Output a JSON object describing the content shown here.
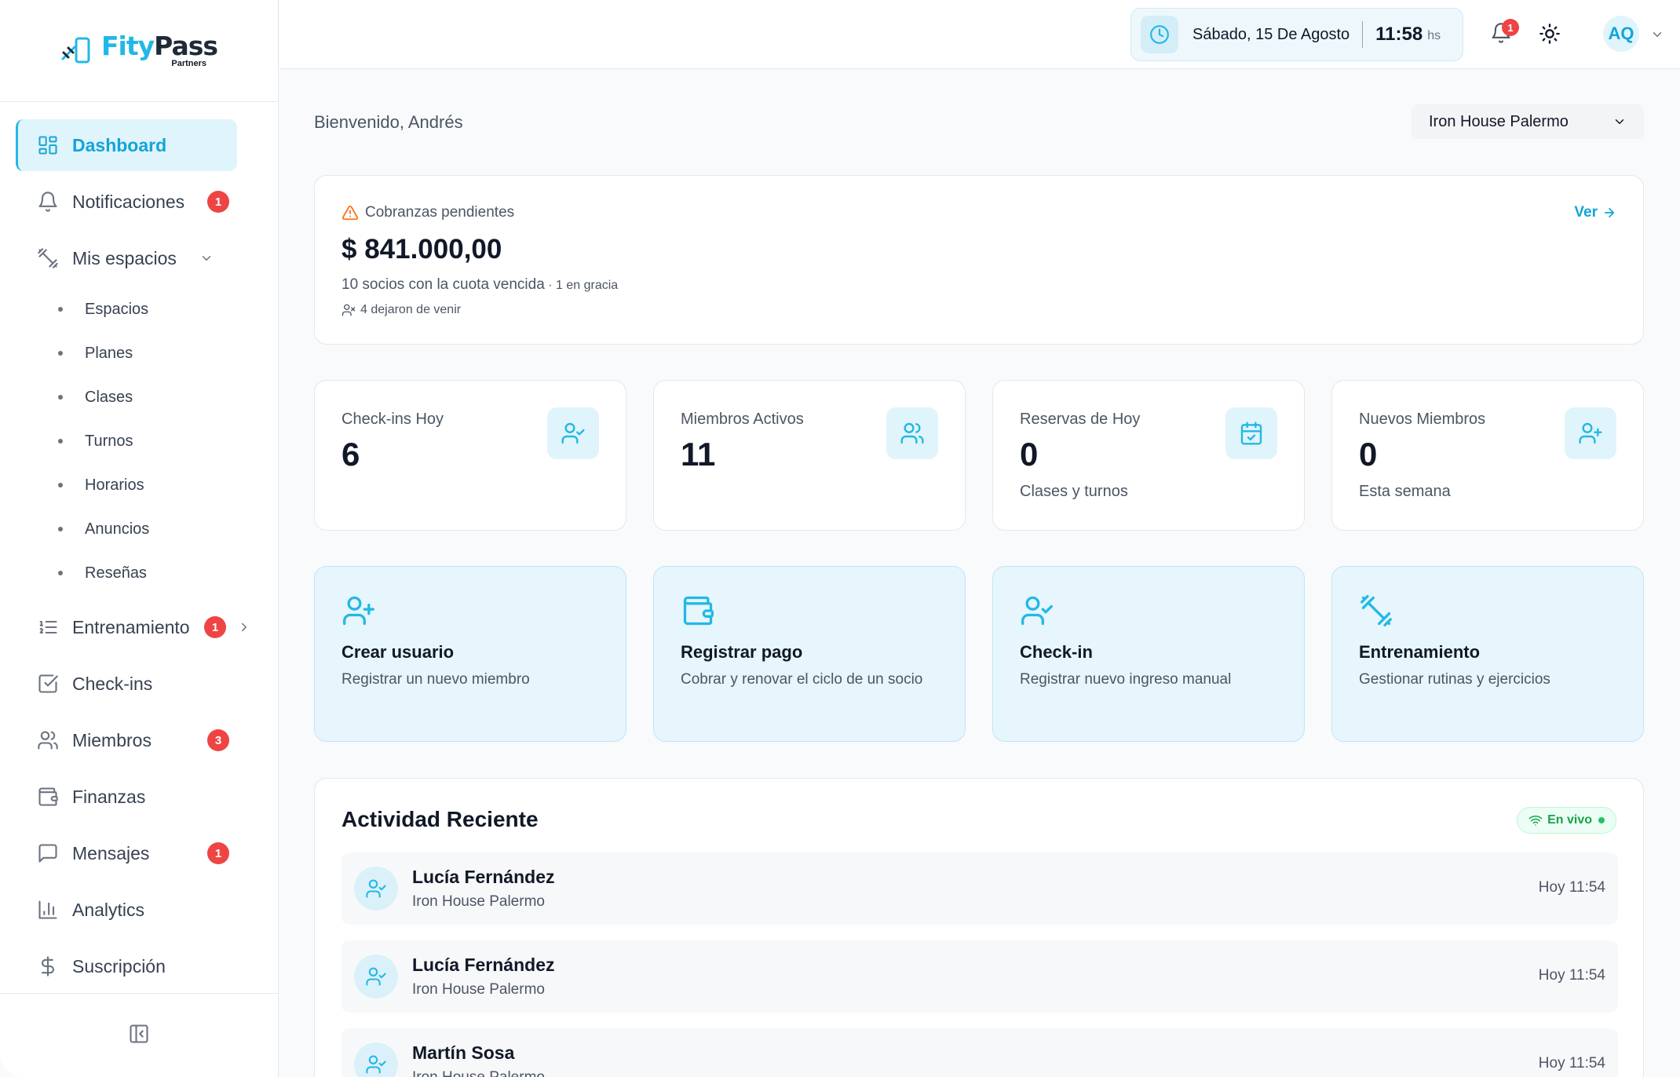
{
  "brand": {
    "name_part1": "Fity",
    "name_part2": "Pass",
    "subtitle": "Partners"
  },
  "sidebar": {
    "items": [
      {
        "label": "Dashboard",
        "icon": "dashboard-icon",
        "active": true
      },
      {
        "label": "Notificaciones",
        "icon": "bell-icon",
        "badge": "1"
      },
      {
        "label": "Mis espacios",
        "icon": "dumbbell-icon",
        "expanded": true
      },
      {
        "label": "Entrenamiento",
        "icon": "list-icon",
        "badge": "1"
      },
      {
        "label": "Check-ins",
        "icon": "checkbox-icon"
      },
      {
        "label": "Miembros",
        "icon": "users-icon",
        "badge": "3"
      },
      {
        "label": "Finanzas",
        "icon": "wallet-icon"
      },
      {
        "label": "Mensajes",
        "icon": "message-icon",
        "badge": "1"
      },
      {
        "label": "Analytics",
        "icon": "bar-chart-icon"
      },
      {
        "label": "Suscripción",
        "icon": "dollar-icon"
      }
    ],
    "sub_items": [
      "Espacios",
      "Planes",
      "Clases",
      "Turnos",
      "Horarios",
      "Anuncios",
      "Reseñas"
    ],
    "footer_icon": "collapse-sidebar-icon"
  },
  "header": {
    "date": "Sábado, 15 De Agosto",
    "time": "11:58",
    "time_unit": "hs",
    "notifications_badge": "1",
    "avatar_initials": "AQ"
  },
  "main": {
    "welcome": "Bienvenido, Andrés",
    "gym_selected": "Iron House Palermo",
    "pending": {
      "title": "Cobranzas pendientes",
      "amount": "$ 841.000,00",
      "desc": "10 socios con la cuota vencida",
      "desc_small": " · 1 en gracia",
      "left": "4 dejaron de venir",
      "link": "Ver"
    },
    "stats": [
      {
        "label": "Check-ins Hoy",
        "value": "6",
        "sub": "",
        "icon": "user-check-icon"
      },
      {
        "label": "Miembros Activos",
        "value": "11",
        "sub": "",
        "icon": "users-icon"
      },
      {
        "label": "Reservas de Hoy",
        "value": "0",
        "sub": "Clases y turnos",
        "icon": "calendar-check-icon"
      },
      {
        "label": "Nuevos Miembros",
        "value": "0",
        "sub": "Esta semana",
        "icon": "user-plus-icon"
      }
    ],
    "actions": [
      {
        "title": "Crear usuario",
        "desc": "Registrar un nuevo miembro",
        "icon": "user-plus-icon"
      },
      {
        "title": "Registrar pago",
        "desc": "Cobrar y renovar el ciclo de un socio",
        "icon": "wallet-icon"
      },
      {
        "title": "Check-in",
        "desc": "Registrar nuevo ingreso manual",
        "icon": "user-check-icon"
      },
      {
        "title": "Entrenamiento",
        "desc": "Gestionar rutinas y ejercicios",
        "icon": "dumbbell-icon"
      }
    ],
    "activity": {
      "title": "Actividad Reciente",
      "live_label": "En vivo",
      "rows": [
        {
          "name": "Lucía Fernández",
          "place": "Iron House Palermo",
          "time": "Hoy 11:54"
        },
        {
          "name": "Lucía Fernández",
          "place": "Iron House Palermo",
          "time": "Hoy 11:54"
        },
        {
          "name": "Martín Sosa",
          "place": "Iron House Palermo",
          "time": "Hoy 11:54"
        }
      ]
    }
  }
}
